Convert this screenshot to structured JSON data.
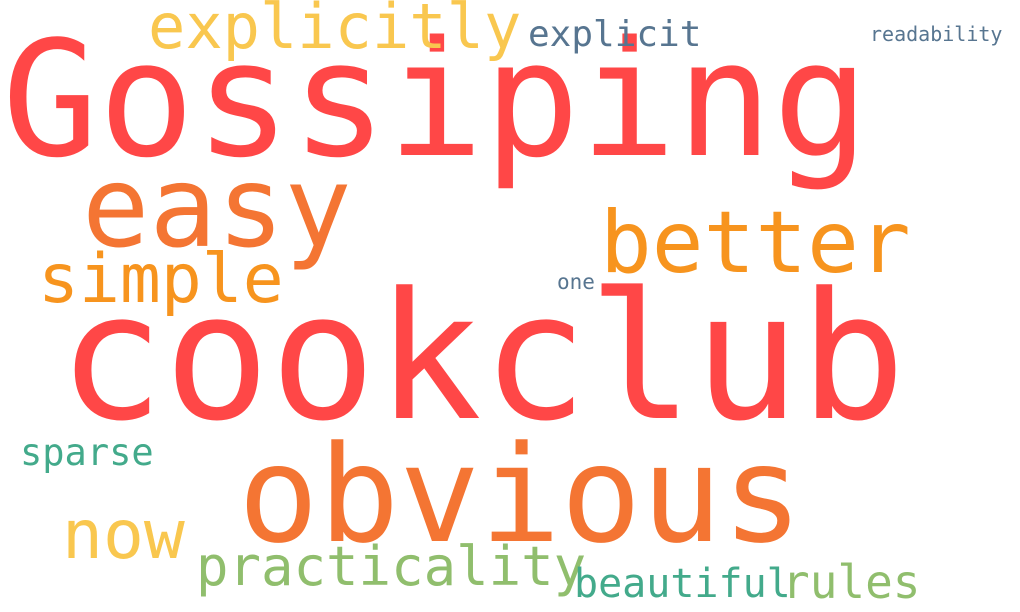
{
  "words": [
    {
      "id": "gossiping",
      "text": "Gossiping",
      "color": "#ff4747"
    },
    {
      "id": "cookclub",
      "text": "cookclub",
      "color": "#ff4747"
    },
    {
      "id": "obvious",
      "text": "obvious",
      "color": "#f47533"
    },
    {
      "id": "easy",
      "text": "easy",
      "color": "#f47533"
    },
    {
      "id": "better",
      "text": "better",
      "color": "#f7941e"
    },
    {
      "id": "simple",
      "text": "simple",
      "color": "#f7941e"
    },
    {
      "id": "explicitly",
      "text": "explicitly",
      "color": "#f9c74f"
    },
    {
      "id": "explicit",
      "text": "explicit",
      "color": "#577590"
    },
    {
      "id": "readability",
      "text": "readability",
      "color": "#577590"
    },
    {
      "id": "one",
      "text": "one",
      "color": "#577590"
    },
    {
      "id": "sparse",
      "text": "sparse",
      "color": "#43aa8b"
    },
    {
      "id": "now",
      "text": "now",
      "color": "#f9c74f"
    },
    {
      "id": "practicality",
      "text": "practicality",
      "color": "#90be6d"
    },
    {
      "id": "beautiful",
      "text": "beautiful",
      "color": "#43aa8b"
    },
    {
      "id": "rules",
      "text": "rules",
      "color": "#90be6d"
    }
  ]
}
